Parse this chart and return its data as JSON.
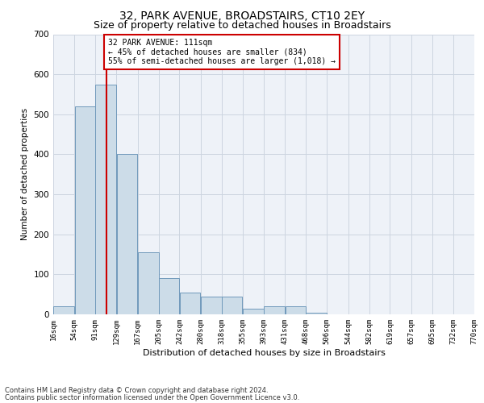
{
  "title1": "32, PARK AVENUE, BROADSTAIRS, CT10 2EY",
  "title2": "Size of property relative to detached houses in Broadstairs",
  "xlabel": "Distribution of detached houses by size in Broadstairs",
  "ylabel": "Number of detached properties",
  "footnote1": "Contains HM Land Registry data © Crown copyright and database right 2024.",
  "footnote2": "Contains public sector information licensed under the Open Government Licence v3.0.",
  "annotation_line1": "32 PARK AVENUE: 111sqm",
  "annotation_line2": "← 45% of detached houses are smaller (834)",
  "annotation_line3": "55% of semi-detached houses are larger (1,018) →",
  "bar_left_edges": [
    16,
    54,
    91,
    129,
    167,
    205,
    242,
    280,
    318,
    355,
    393,
    431,
    468,
    506,
    544,
    582,
    619,
    657,
    695,
    732
  ],
  "bar_widths": [
    38,
    37,
    38,
    38,
    38,
    37,
    38,
    38,
    37,
    38,
    38,
    37,
    38,
    38,
    38,
    37,
    38,
    38,
    37,
    38
  ],
  "bar_heights": [
    20,
    520,
    575,
    400,
    155,
    90,
    55,
    45,
    45,
    15,
    20,
    20,
    5,
    0,
    0,
    0,
    0,
    0,
    0,
    0
  ],
  "bar_color": "#ccdce8",
  "bar_edge_color": "#7099bb",
  "vline_x": 111,
  "vline_color": "#cc0000",
  "ylim": [
    0,
    700
  ],
  "yticks": [
    0,
    100,
    200,
    300,
    400,
    500,
    600,
    700
  ],
  "xlim": [
    16,
    770
  ],
  "xtick_labels": [
    "16sqm",
    "54sqm",
    "91sqm",
    "129sqm",
    "167sqm",
    "205sqm",
    "242sqm",
    "280sqm",
    "318sqm",
    "355sqm",
    "393sqm",
    "431sqm",
    "468sqm",
    "506sqm",
    "544sqm",
    "582sqm",
    "619sqm",
    "657sqm",
    "695sqm",
    "732sqm",
    "770sqm"
  ],
  "xtick_positions": [
    16,
    54,
    91,
    129,
    167,
    205,
    242,
    280,
    318,
    355,
    393,
    431,
    468,
    506,
    544,
    582,
    619,
    657,
    695,
    732,
    770
  ],
  "grid_color": "#ccd5e0",
  "bg_color": "#eef2f8",
  "title1_fontsize": 10,
  "title2_fontsize": 9,
  "xlabel_fontsize": 8,
  "ylabel_fontsize": 7.5,
  "footnote_fontsize": 6,
  "annotation_fontsize": 7
}
